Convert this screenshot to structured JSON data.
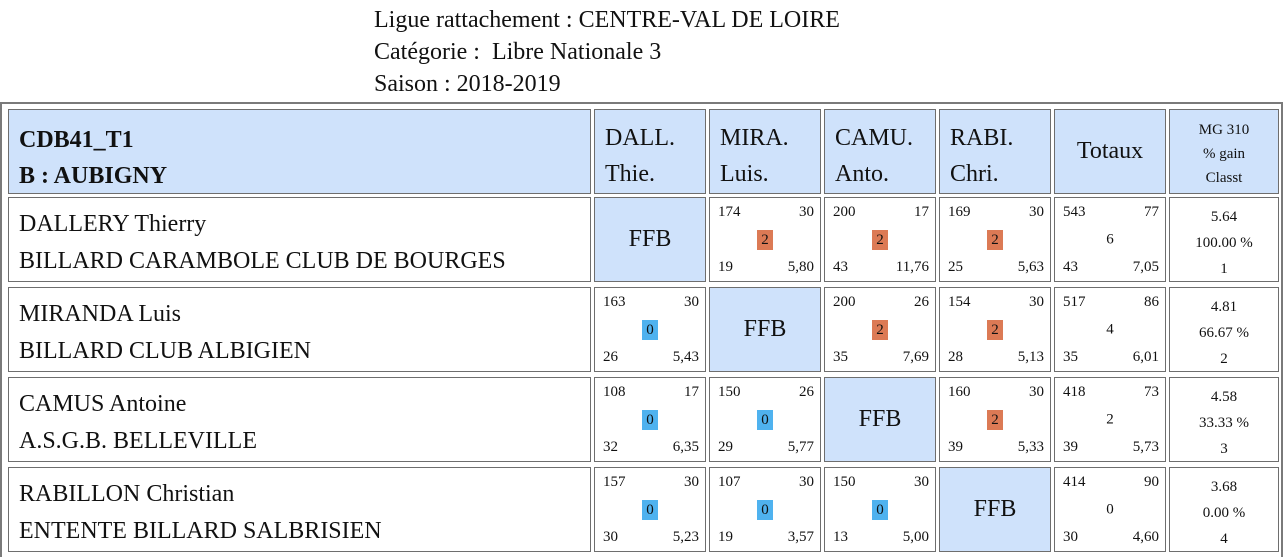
{
  "header": {
    "ligue": "Ligue rattachement : CENTRE-VAL DE LOIRE",
    "categorie": "Catégorie :  Libre Nationale 3",
    "saison": "Saison : 2018-2019"
  },
  "table": {
    "team_line1": "CDB41_T1",
    "team_line2": "B : AUBIGNY",
    "columns": [
      {
        "line1": "DALL.",
        "line2": "Thie."
      },
      {
        "line1": "MIRA.",
        "line2": "Luis."
      },
      {
        "line1": "CAMU.",
        "line2": "Anto."
      },
      {
        "line1": "RABI.",
        "line2": "Chri."
      }
    ],
    "totaux_label": "Totaux",
    "mg_line1": "MG 310",
    "mg_line2": "% gain",
    "mg_line3": "Classt",
    "ffb_label": "FFB",
    "rows": [
      {
        "name": "DALLERY Thierry",
        "club": "BILLARD CARAMBOLE CLUB DE BOURGES",
        "matches": [
          null,
          {
            "points": "174",
            "distance": "30",
            "result": "2",
            "reprises": "19",
            "moyenne": "5,80"
          },
          {
            "points": "200",
            "distance": "17",
            "result": "2",
            "reprises": "43",
            "moyenne": "11,76"
          },
          {
            "points": "169",
            "distance": "30",
            "result": "2",
            "reprises": "25",
            "moyenne": "5,63"
          }
        ],
        "totals": {
          "points": "543",
          "serie": "77",
          "match_points": "6",
          "reprises": "43",
          "moyenne": "7,05"
        },
        "mg": "5.64",
        "gain": "100.00 %",
        "rank": "1"
      },
      {
        "name": "MIRANDA Luis",
        "club": "BILLARD CLUB ALBIGIEN",
        "matches": [
          {
            "points": "163",
            "distance": "30",
            "result": "0",
            "reprises": "26",
            "moyenne": "5,43"
          },
          null,
          {
            "points": "200",
            "distance": "26",
            "result": "2",
            "reprises": "35",
            "moyenne": "7,69"
          },
          {
            "points": "154",
            "distance": "30",
            "result": "2",
            "reprises": "28",
            "moyenne": "5,13"
          }
        ],
        "totals": {
          "points": "517",
          "serie": "86",
          "match_points": "4",
          "reprises": "35",
          "moyenne": "6,01"
        },
        "mg": "4.81",
        "gain": "66.67 %",
        "rank": "2"
      },
      {
        "name": "CAMUS Antoine",
        "club": "A.S.G.B. BELLEVILLE",
        "matches": [
          {
            "points": "108",
            "distance": "17",
            "result": "0",
            "reprises": "32",
            "moyenne": "6,35"
          },
          {
            "points": "150",
            "distance": "26",
            "result": "0",
            "reprises": "29",
            "moyenne": "5,77"
          },
          null,
          {
            "points": "160",
            "distance": "30",
            "result": "2",
            "reprises": "39",
            "moyenne": "5,33"
          }
        ],
        "totals": {
          "points": "418",
          "serie": "73",
          "match_points": "2",
          "reprises": "39",
          "moyenne": "5,73"
        },
        "mg": "4.58",
        "gain": "33.33 %",
        "rank": "3"
      },
      {
        "name": "RABILLON Christian",
        "club": "ENTENTE BILLARD SALBRISIEN",
        "matches": [
          {
            "points": "157",
            "distance": "30",
            "result": "0",
            "reprises": "30",
            "moyenne": "5,23"
          },
          {
            "points": "107",
            "distance": "30",
            "result": "0",
            "reprises": "19",
            "moyenne": "3,57"
          },
          {
            "points": "150",
            "distance": "30",
            "result": "0",
            "reprises": "13",
            "moyenne": "5,00"
          },
          null
        ],
        "totals": {
          "points": "414",
          "serie": "90",
          "match_points": "0",
          "reprises": "30",
          "moyenne": "4,60"
        },
        "mg": "3.68",
        "gain": "0.00 %",
        "rank": "4"
      }
    ],
    "colors": {
      "win": "#dc7a55",
      "loss": "#4fb2ef",
      "header_bg": "#cfe2fb"
    }
  }
}
